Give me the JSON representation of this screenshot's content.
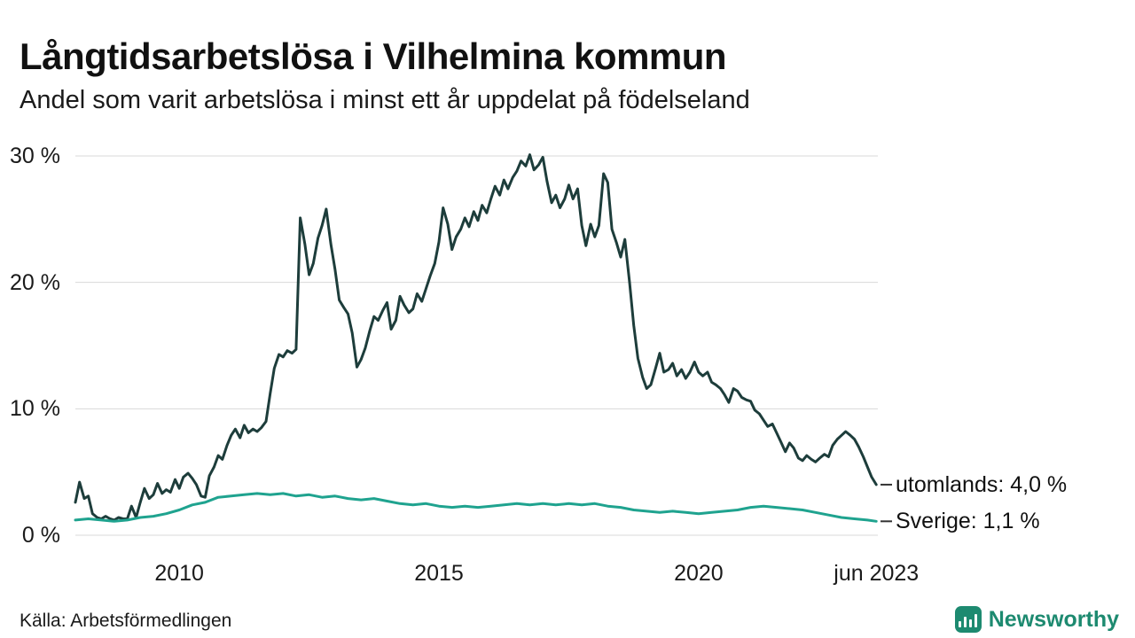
{
  "page": {
    "title": "Långtidsarbetslösa i Vilhelmina kommun",
    "subtitle": "Andel som varit arbetslösa i minst ett år uppdelat på födelseland",
    "source": "Källa: Arbetsförmedlingen",
    "brand": "Newsworthy"
  },
  "colors": {
    "utomlands_line": "#1d3d3b",
    "sverige_line": "#1fa38f",
    "brand_teal": "#1d8a70",
    "gridline": "#d8d8d8",
    "text": "#1a1a1a",
    "label_tick": "#333333"
  },
  "chart_data": {
    "type": "line",
    "title": "Långtidsarbetslösa i Vilhelmina kommun",
    "subtitle": "Andel som varit arbetslösa i minst ett år uppdelat på födelseland",
    "xlabel": "",
    "ylabel": "",
    "xlim": [
      2008.0,
      2023.45
    ],
    "ylim": [
      0,
      30
    ],
    "grid": "horizontal",
    "legend_position": "right-end-labels",
    "yticks": [
      {
        "value": 30,
        "label": "30 %"
      },
      {
        "value": 20,
        "label": "20 %"
      },
      {
        "value": 10,
        "label": "10 %"
      },
      {
        "value": 0,
        "label": "0 %"
      }
    ],
    "xticks": [
      {
        "value": 2010,
        "label": "2010"
      },
      {
        "value": 2015,
        "label": "2015"
      },
      {
        "value": 2020,
        "label": "2020"
      },
      {
        "value": 2023.42,
        "label": "jun 2023"
      }
    ],
    "series": [
      {
        "name": "utomlands",
        "label": "utomlands: 4,0 %",
        "last_value": 4.0,
        "color": "#1d3d3b",
        "width": 3,
        "points": [
          [
            2008.0,
            2.6
          ],
          [
            2008.08,
            4.2
          ],
          [
            2008.17,
            2.9
          ],
          [
            2008.25,
            3.1
          ],
          [
            2008.33,
            1.7
          ],
          [
            2008.42,
            1.4
          ],
          [
            2008.5,
            1.3
          ],
          [
            2008.58,
            1.5
          ],
          [
            2008.67,
            1.3
          ],
          [
            2008.75,
            1.2
          ],
          [
            2008.83,
            1.4
          ],
          [
            2008.92,
            1.3
          ],
          [
            2009.0,
            1.3
          ],
          [
            2009.08,
            2.3
          ],
          [
            2009.17,
            1.4
          ],
          [
            2009.25,
            2.6
          ],
          [
            2009.33,
            3.7
          ],
          [
            2009.42,
            2.9
          ],
          [
            2009.5,
            3.2
          ],
          [
            2009.58,
            4.1
          ],
          [
            2009.67,
            3.3
          ],
          [
            2009.75,
            3.6
          ],
          [
            2009.83,
            3.4
          ],
          [
            2009.92,
            4.4
          ],
          [
            2010.0,
            3.7
          ],
          [
            2010.08,
            4.6
          ],
          [
            2010.17,
            4.9
          ],
          [
            2010.25,
            4.5
          ],
          [
            2010.33,
            4.0
          ],
          [
            2010.42,
            3.1
          ],
          [
            2010.5,
            3.0
          ],
          [
            2010.58,
            4.7
          ],
          [
            2010.67,
            5.4
          ],
          [
            2010.75,
            6.3
          ],
          [
            2010.83,
            6.0
          ],
          [
            2010.92,
            7.1
          ],
          [
            2011.0,
            7.9
          ],
          [
            2011.08,
            8.4
          ],
          [
            2011.17,
            7.7
          ],
          [
            2011.25,
            8.7
          ],
          [
            2011.33,
            8.1
          ],
          [
            2011.42,
            8.4
          ],
          [
            2011.5,
            8.2
          ],
          [
            2011.58,
            8.5
          ],
          [
            2011.67,
            9.0
          ],
          [
            2011.75,
            11.2
          ],
          [
            2011.83,
            13.2
          ],
          [
            2011.92,
            14.3
          ],
          [
            2012.0,
            14.1
          ],
          [
            2012.08,
            14.6
          ],
          [
            2012.17,
            14.4
          ],
          [
            2012.25,
            14.7
          ],
          [
            2012.33,
            25.1
          ],
          [
            2012.42,
            23.0
          ],
          [
            2012.5,
            20.6
          ],
          [
            2012.58,
            21.5
          ],
          [
            2012.67,
            23.5
          ],
          [
            2012.75,
            24.5
          ],
          [
            2012.83,
            25.8
          ],
          [
            2012.92,
            23.0
          ],
          [
            2013.0,
            21.0
          ],
          [
            2013.08,
            18.6
          ],
          [
            2013.17,
            18.0
          ],
          [
            2013.25,
            17.5
          ],
          [
            2013.33,
            16.0
          ],
          [
            2013.42,
            13.3
          ],
          [
            2013.5,
            13.9
          ],
          [
            2013.58,
            14.8
          ],
          [
            2013.67,
            16.2
          ],
          [
            2013.75,
            17.3
          ],
          [
            2013.83,
            17.0
          ],
          [
            2013.92,
            17.8
          ],
          [
            2014.0,
            18.4
          ],
          [
            2014.08,
            16.3
          ],
          [
            2014.17,
            17.0
          ],
          [
            2014.25,
            18.9
          ],
          [
            2014.33,
            18.2
          ],
          [
            2014.42,
            17.6
          ],
          [
            2014.5,
            17.9
          ],
          [
            2014.58,
            19.1
          ],
          [
            2014.67,
            18.5
          ],
          [
            2014.75,
            19.5
          ],
          [
            2014.83,
            20.5
          ],
          [
            2014.92,
            21.5
          ],
          [
            2015.0,
            23.2
          ],
          [
            2015.08,
            25.9
          ],
          [
            2015.17,
            24.6
          ],
          [
            2015.25,
            22.6
          ],
          [
            2015.33,
            23.6
          ],
          [
            2015.42,
            24.2
          ],
          [
            2015.5,
            25.1
          ],
          [
            2015.58,
            24.4
          ],
          [
            2015.67,
            25.6
          ],
          [
            2015.75,
            24.9
          ],
          [
            2015.83,
            26.1
          ],
          [
            2015.92,
            25.5
          ],
          [
            2016.0,
            26.6
          ],
          [
            2016.08,
            27.6
          ],
          [
            2016.17,
            26.9
          ],
          [
            2016.25,
            28.1
          ],
          [
            2016.33,
            27.4
          ],
          [
            2016.42,
            28.3
          ],
          [
            2016.5,
            28.8
          ],
          [
            2016.58,
            29.6
          ],
          [
            2016.67,
            29.2
          ],
          [
            2016.75,
            30.1
          ],
          [
            2016.83,
            28.9
          ],
          [
            2016.92,
            29.3
          ],
          [
            2017.0,
            29.9
          ],
          [
            2017.08,
            28.0
          ],
          [
            2017.17,
            26.3
          ],
          [
            2017.25,
            26.9
          ],
          [
            2017.33,
            25.9
          ],
          [
            2017.42,
            26.6
          ],
          [
            2017.5,
            27.7
          ],
          [
            2017.58,
            26.6
          ],
          [
            2017.67,
            27.4
          ],
          [
            2017.75,
            24.5
          ],
          [
            2017.83,
            22.9
          ],
          [
            2017.92,
            24.6
          ],
          [
            2018.0,
            23.6
          ],
          [
            2018.08,
            24.5
          ],
          [
            2018.17,
            28.6
          ],
          [
            2018.25,
            27.9
          ],
          [
            2018.33,
            24.2
          ],
          [
            2018.42,
            23.1
          ],
          [
            2018.5,
            22.0
          ],
          [
            2018.58,
            23.4
          ],
          [
            2018.67,
            20.0
          ],
          [
            2018.75,
            16.6
          ],
          [
            2018.83,
            14.0
          ],
          [
            2018.92,
            12.5
          ],
          [
            2019.0,
            11.6
          ],
          [
            2019.08,
            11.9
          ],
          [
            2019.17,
            13.2
          ],
          [
            2019.25,
            14.4
          ],
          [
            2019.33,
            12.9
          ],
          [
            2019.42,
            13.1
          ],
          [
            2019.5,
            13.6
          ],
          [
            2019.58,
            12.6
          ],
          [
            2019.67,
            13.1
          ],
          [
            2019.75,
            12.4
          ],
          [
            2019.83,
            12.9
          ],
          [
            2019.92,
            13.7
          ],
          [
            2020.0,
            12.9
          ],
          [
            2020.08,
            12.6
          ],
          [
            2020.17,
            12.9
          ],
          [
            2020.25,
            12.1
          ],
          [
            2020.33,
            11.9
          ],
          [
            2020.42,
            11.6
          ],
          [
            2020.5,
            11.1
          ],
          [
            2020.58,
            10.5
          ],
          [
            2020.67,
            11.6
          ],
          [
            2020.75,
            11.4
          ],
          [
            2020.83,
            10.9
          ],
          [
            2020.92,
            10.7
          ],
          [
            2021.0,
            10.6
          ],
          [
            2021.08,
            9.9
          ],
          [
            2021.17,
            9.6
          ],
          [
            2021.25,
            9.1
          ],
          [
            2021.33,
            8.6
          ],
          [
            2021.42,
            8.8
          ],
          [
            2021.5,
            8.1
          ],
          [
            2021.58,
            7.4
          ],
          [
            2021.67,
            6.6
          ],
          [
            2021.75,
            7.3
          ],
          [
            2021.83,
            6.9
          ],
          [
            2021.92,
            6.1
          ],
          [
            2022.0,
            5.9
          ],
          [
            2022.08,
            6.3
          ],
          [
            2022.17,
            6.0
          ],
          [
            2022.25,
            5.8
          ],
          [
            2022.33,
            6.1
          ],
          [
            2022.42,
            6.4
          ],
          [
            2022.5,
            6.2
          ],
          [
            2022.58,
            7.1
          ],
          [
            2022.67,
            7.6
          ],
          [
            2022.75,
            7.9
          ],
          [
            2022.83,
            8.2
          ],
          [
            2022.92,
            7.9
          ],
          [
            2023.0,
            7.6
          ],
          [
            2023.08,
            7.0
          ],
          [
            2023.17,
            6.2
          ],
          [
            2023.25,
            5.4
          ],
          [
            2023.33,
            4.6
          ],
          [
            2023.42,
            4.0
          ]
        ]
      },
      {
        "name": "sverige",
        "label": "Sverige: 1,1 %",
        "last_value": 1.1,
        "color": "#1fa38f",
        "width": 3,
        "points": [
          [
            2008.0,
            1.2
          ],
          [
            2008.25,
            1.3
          ],
          [
            2008.5,
            1.2
          ],
          [
            2008.75,
            1.1
          ],
          [
            2009.0,
            1.2
          ],
          [
            2009.25,
            1.4
          ],
          [
            2009.5,
            1.5
          ],
          [
            2009.75,
            1.7
          ],
          [
            2010.0,
            2.0
          ],
          [
            2010.25,
            2.4
          ],
          [
            2010.5,
            2.6
          ],
          [
            2010.75,
            3.0
          ],
          [
            2011.0,
            3.1
          ],
          [
            2011.25,
            3.2
          ],
          [
            2011.5,
            3.3
          ],
          [
            2011.75,
            3.2
          ],
          [
            2012.0,
            3.3
          ],
          [
            2012.25,
            3.1
          ],
          [
            2012.5,
            3.2
          ],
          [
            2012.75,
            3.0
          ],
          [
            2013.0,
            3.1
          ],
          [
            2013.25,
            2.9
          ],
          [
            2013.5,
            2.8
          ],
          [
            2013.75,
            2.9
          ],
          [
            2014.0,
            2.7
          ],
          [
            2014.25,
            2.5
          ],
          [
            2014.5,
            2.4
          ],
          [
            2014.75,
            2.5
          ],
          [
            2015.0,
            2.3
          ],
          [
            2015.25,
            2.2
          ],
          [
            2015.5,
            2.3
          ],
          [
            2015.75,
            2.2
          ],
          [
            2016.0,
            2.3
          ],
          [
            2016.25,
            2.4
          ],
          [
            2016.5,
            2.5
          ],
          [
            2016.75,
            2.4
          ],
          [
            2017.0,
            2.5
          ],
          [
            2017.25,
            2.4
          ],
          [
            2017.5,
            2.5
          ],
          [
            2017.75,
            2.4
          ],
          [
            2018.0,
            2.5
          ],
          [
            2018.25,
            2.3
          ],
          [
            2018.5,
            2.2
          ],
          [
            2018.75,
            2.0
          ],
          [
            2019.0,
            1.9
          ],
          [
            2019.25,
            1.8
          ],
          [
            2019.5,
            1.9
          ],
          [
            2019.75,
            1.8
          ],
          [
            2020.0,
            1.7
          ],
          [
            2020.25,
            1.8
          ],
          [
            2020.5,
            1.9
          ],
          [
            2020.75,
            2.0
          ],
          [
            2021.0,
            2.2
          ],
          [
            2021.25,
            2.3
          ],
          [
            2021.5,
            2.2
          ],
          [
            2021.75,
            2.1
          ],
          [
            2022.0,
            2.0
          ],
          [
            2022.25,
            1.8
          ],
          [
            2022.5,
            1.6
          ],
          [
            2022.75,
            1.4
          ],
          [
            2023.0,
            1.3
          ],
          [
            2023.25,
            1.2
          ],
          [
            2023.42,
            1.1
          ]
        ]
      }
    ]
  }
}
